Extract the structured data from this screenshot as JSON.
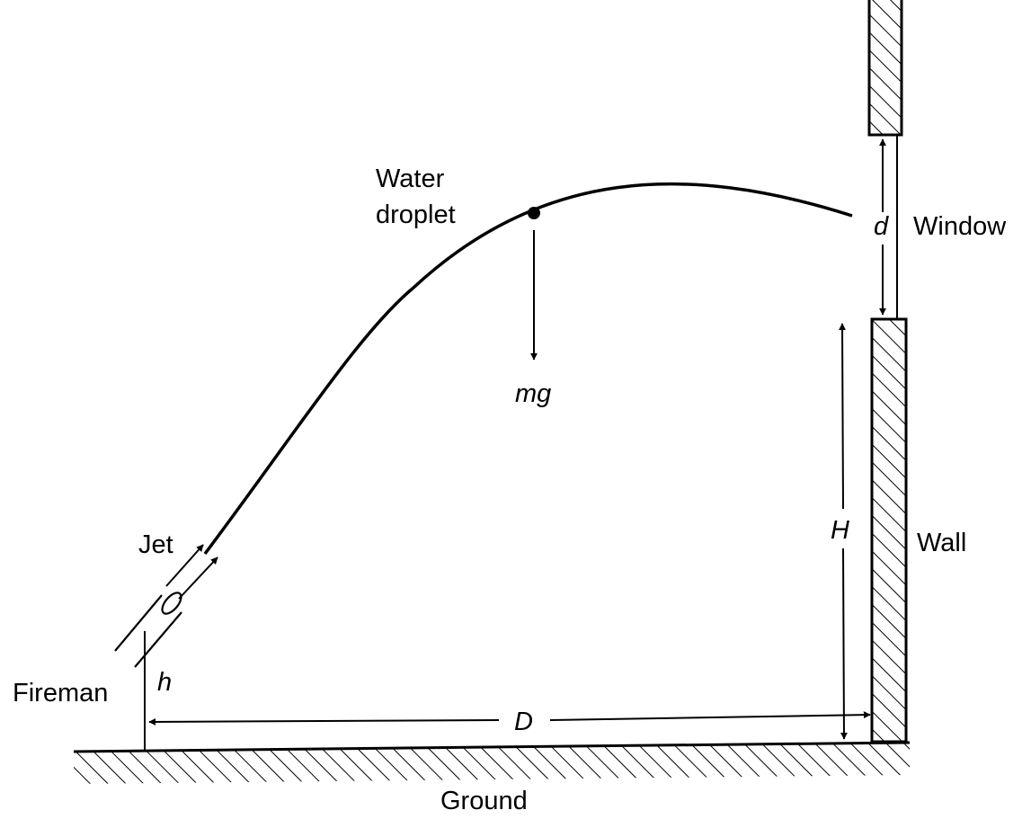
{
  "labels": {
    "water_droplet_line1": "Water",
    "water_droplet_line2": "droplet",
    "mg": "mg",
    "d": "d",
    "window": "Window",
    "H": "H",
    "wall": "Wall",
    "jet": "Jet",
    "fireman": "Fireman",
    "h": "h",
    "D": "D",
    "ground": "Ground"
  },
  "colors": {
    "ink": "#000000",
    "background": "#ffffff"
  }
}
